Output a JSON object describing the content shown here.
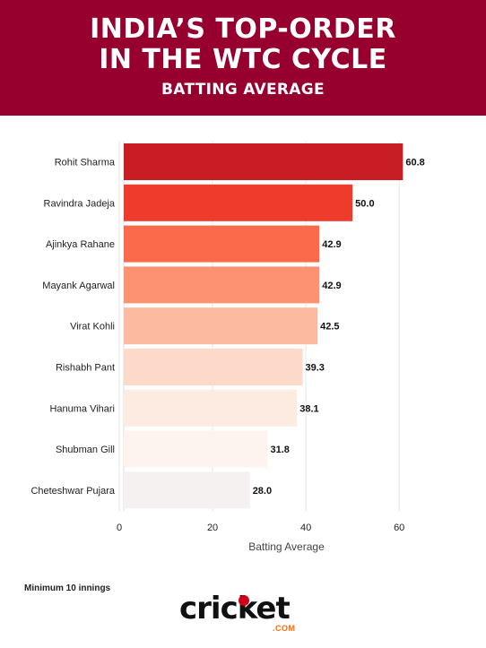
{
  "header": {
    "title_line1": "INDIA’S TOP-ORDER",
    "title_line2": "IN THE WTC CYCLE",
    "subtitle": "BATTING AVERAGE"
  },
  "footer": {
    "note": "Minimum 10 innings",
    "logo_text": "cricket",
    "logo_suffix": ".COM"
  },
  "chart_data": {
    "type": "bar",
    "orientation": "horizontal",
    "categories": [
      "Rohit Sharma",
      "Ravindra Jadeja",
      "Ajinkya Rahane",
      "Mayank Agarwal",
      "Virat Kohli",
      "Rishabh Pant",
      "Hanuma Vihari",
      "Shubman Gill",
      "Cheteshwar Pujara"
    ],
    "values": [
      60.8,
      50.0,
      42.9,
      42.9,
      42.5,
      39.3,
      38.1,
      31.8,
      28.0
    ],
    "value_labels": [
      "60.8",
      "50.0",
      "42.9",
      "42.9",
      "42.5",
      "39.3",
      "38.1",
      "31.8",
      "28.0"
    ],
    "colors": [
      "#c81d25",
      "#ef3b2c",
      "#fb6a4a",
      "#fc9272",
      "#fcbba1",
      "#fcd9c8",
      "#fdebe2",
      "#fdf3ef",
      "#f5f1f1"
    ],
    "xlabel": "Batting Average",
    "ylabel": "",
    "xlim": [
      0,
      64
    ],
    "xticks": [
      0,
      20,
      40,
      60
    ],
    "grid": true
  }
}
